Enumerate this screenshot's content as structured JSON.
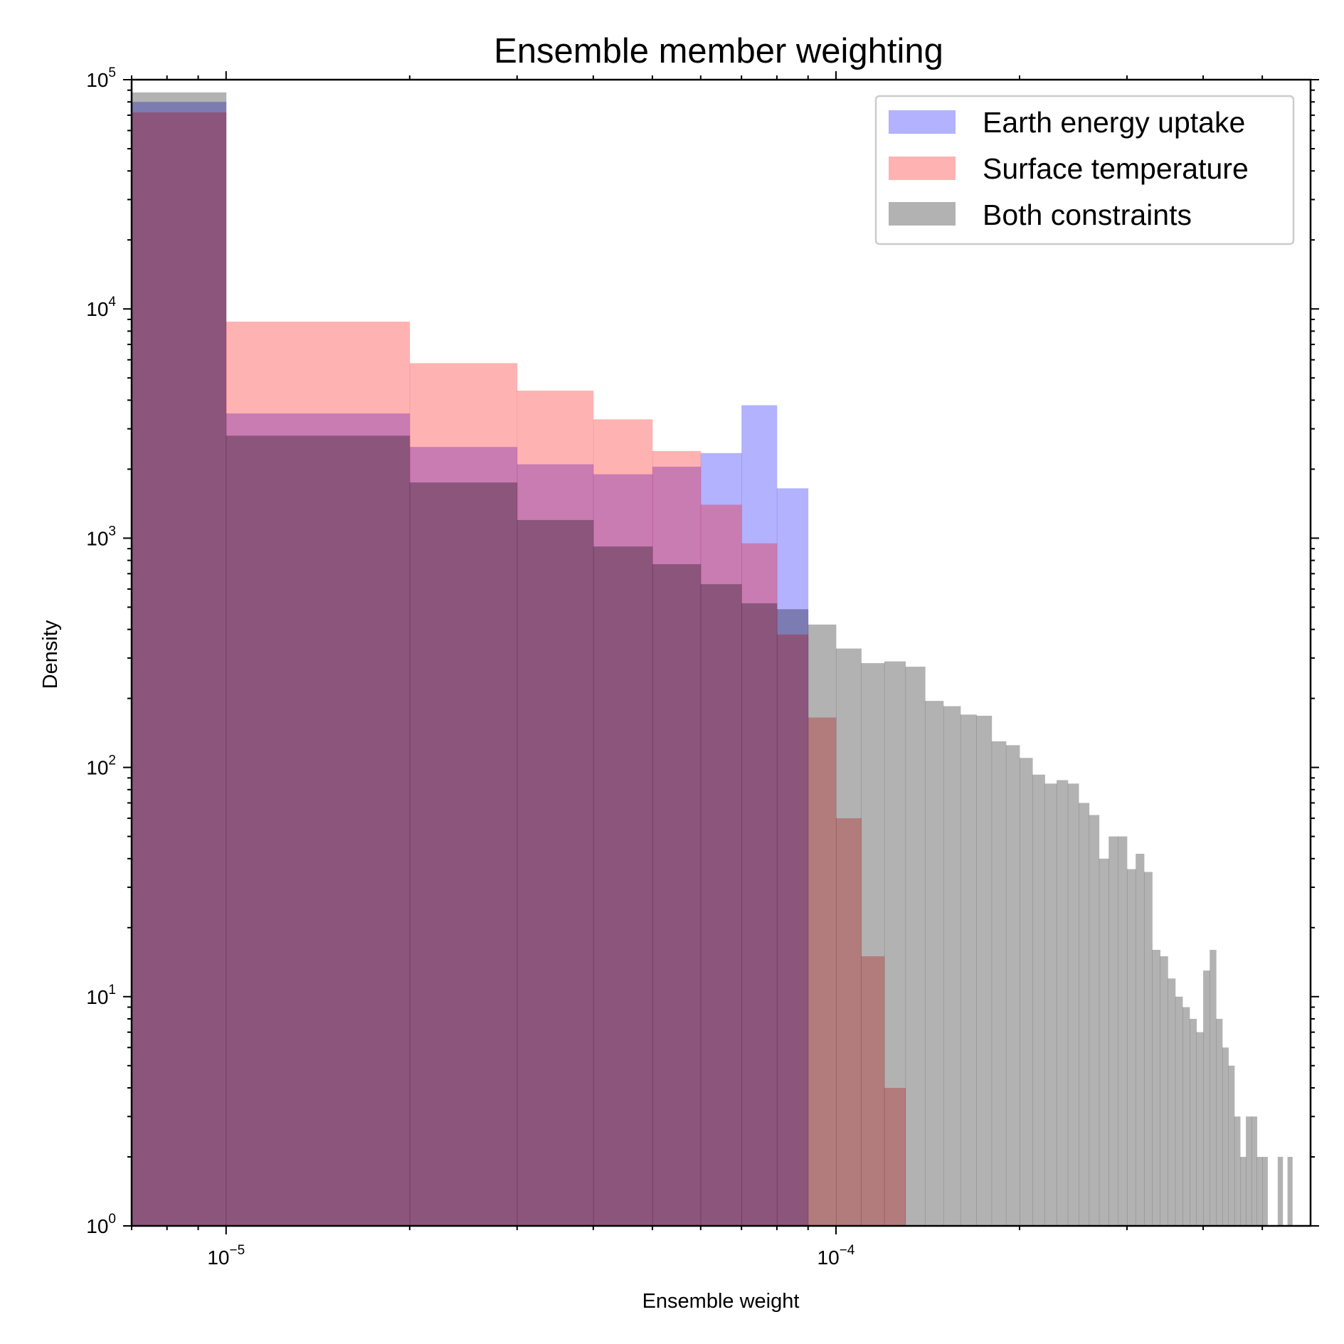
{
  "chart_data": {
    "type": "histogram",
    "title": "Ensemble member weighting",
    "xlabel": "Ensemble weight",
    "ylabel": "Density",
    "xscale": "log",
    "yscale": "log",
    "xlim": [
      7e-06,
      0.0006
    ],
    "ylim": [
      1,
      100000
    ],
    "x_ticks": [
      {
        "value": 1e-05,
        "base": "10",
        "exp": "−5"
      },
      {
        "value": 0.0001,
        "base": "10",
        "exp": "−4"
      }
    ],
    "y_ticks": [
      {
        "value": 1,
        "base": "10",
        "exp": "0"
      },
      {
        "value": 10,
        "base": "10",
        "exp": "1"
      },
      {
        "value": 100,
        "base": "10",
        "exp": "2"
      },
      {
        "value": 1000,
        "base": "10",
        "exp": "3"
      },
      {
        "value": 10000,
        "base": "10",
        "exp": "4"
      },
      {
        "value": 100000,
        "base": "10",
        "exp": "5"
      }
    ],
    "legend_position": "top-right",
    "series": [
      {
        "name": "Earth energy uptake",
        "color": "#0000ff",
        "alpha": 0.3,
        "edges": [
          7e-06,
          1e-05,
          2e-05,
          3e-05,
          4e-05,
          5e-05,
          6e-05,
          7e-05,
          8e-05,
          9e-05
        ],
        "values": [
          80000,
          3500,
          2500,
          2100,
          1900,
          2050,
          2350,
          3800,
          1650
        ]
      },
      {
        "name": "Surface temperature",
        "color": "#ff0000",
        "alpha": 0.3,
        "edges": [
          7e-06,
          1e-05,
          2e-05,
          3e-05,
          4e-05,
          5e-05,
          6e-05,
          7e-05,
          8e-05,
          9e-05,
          0.0001,
          0.00011,
          0.00012,
          0.00013
        ],
        "values": [
          72000,
          8800,
          5800,
          4400,
          3300,
          2400,
          1400,
          950,
          380,
          165,
          60,
          15,
          4
        ]
      },
      {
        "name": "Both constraints",
        "color": "#000000",
        "alpha": 0.3,
        "edges": [
          7e-06,
          1e-05,
          2e-05,
          3e-05,
          4e-05,
          5e-05,
          6e-05,
          7e-05,
          8e-05,
          9e-05,
          0.0001,
          0.00011,
          0.00012,
          0.00013,
          0.00014,
          0.00015,
          0.00016,
          0.00017,
          0.00018,
          0.00019,
          0.0002,
          0.00021,
          0.00022,
          0.00023,
          0.00024,
          0.00025,
          0.00026,
          0.00027,
          0.00028,
          0.00029,
          0.0003,
          0.00031,
          0.00032,
          0.00033,
          0.00034,
          0.00035,
          0.00036,
          0.00037,
          0.00038,
          0.00039,
          0.0004,
          0.00041,
          0.00042,
          0.00043,
          0.00044,
          0.00045,
          0.00046,
          0.00047,
          0.00048,
          0.00049,
          0.0005,
          0.00051,
          0.00052,
          0.00053,
          0.00054,
          0.00055,
          0.00056
        ],
        "values": [
          88000,
          2800,
          1750,
          1200,
          920,
          770,
          630,
          520,
          490,
          420,
          330,
          285,
          290,
          275,
          195,
          185,
          170,
          168,
          130,
          125,
          110,
          93,
          85,
          88,
          85,
          70,
          62,
          40,
          50,
          50,
          36,
          42,
          35,
          16,
          15,
          12,
          10,
          9,
          8,
          7,
          13,
          16,
          8,
          6,
          5,
          3,
          2,
          3,
          3,
          2,
          2,
          0,
          1,
          2,
          0,
          2,
          0
        ]
      }
    ]
  }
}
